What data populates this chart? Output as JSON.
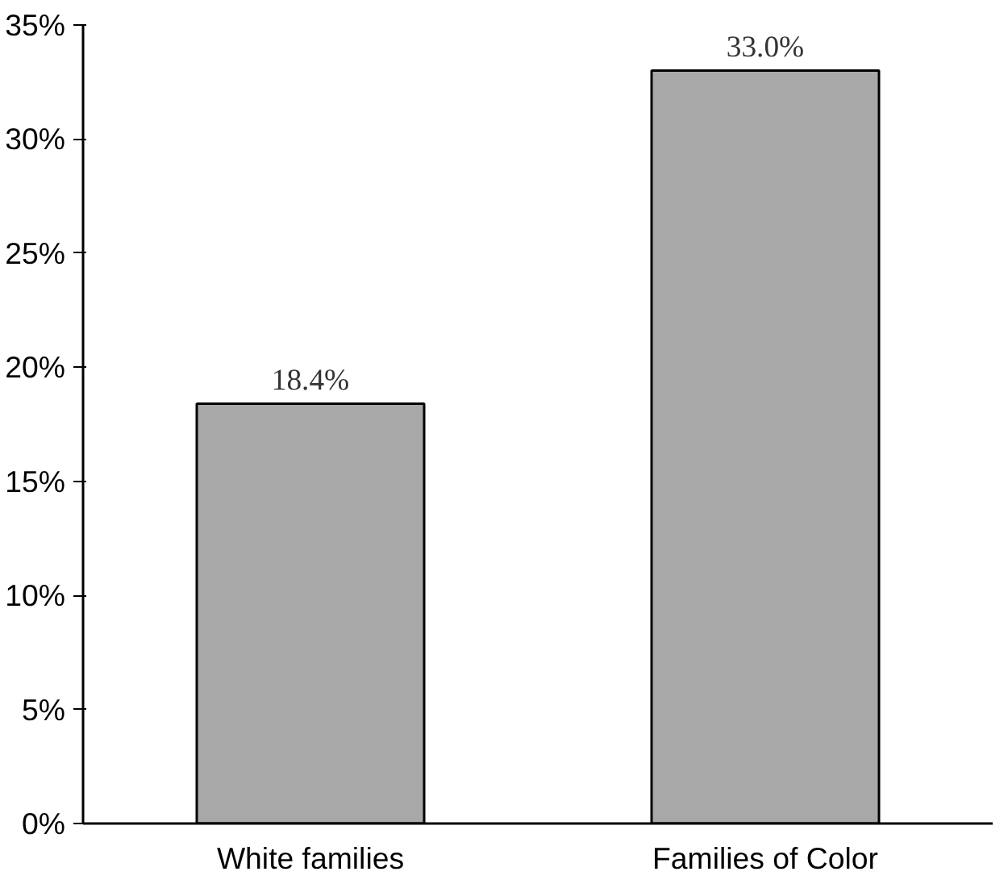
{
  "chart_data": {
    "type": "bar",
    "categories": [
      "White families",
      "Families of Color"
    ],
    "values": [
      18.4,
      33.0
    ],
    "value_labels": [
      "18.4%",
      "33.0%"
    ],
    "color": "#a8a8a8",
    "ylim": [
      0,
      35
    ],
    "yticks": [
      {
        "value": 0,
        "label": "0%"
      },
      {
        "value": 5,
        "label": "5%"
      },
      {
        "value": 10,
        "label": "10%"
      },
      {
        "value": 15,
        "label": "15%"
      },
      {
        "value": 20,
        "label": "20%"
      },
      {
        "value": 25,
        "label": "25%"
      },
      {
        "value": 30,
        "label": "30%"
      },
      {
        "value": 35,
        "label": "35%"
      }
    ],
    "grid": false
  }
}
